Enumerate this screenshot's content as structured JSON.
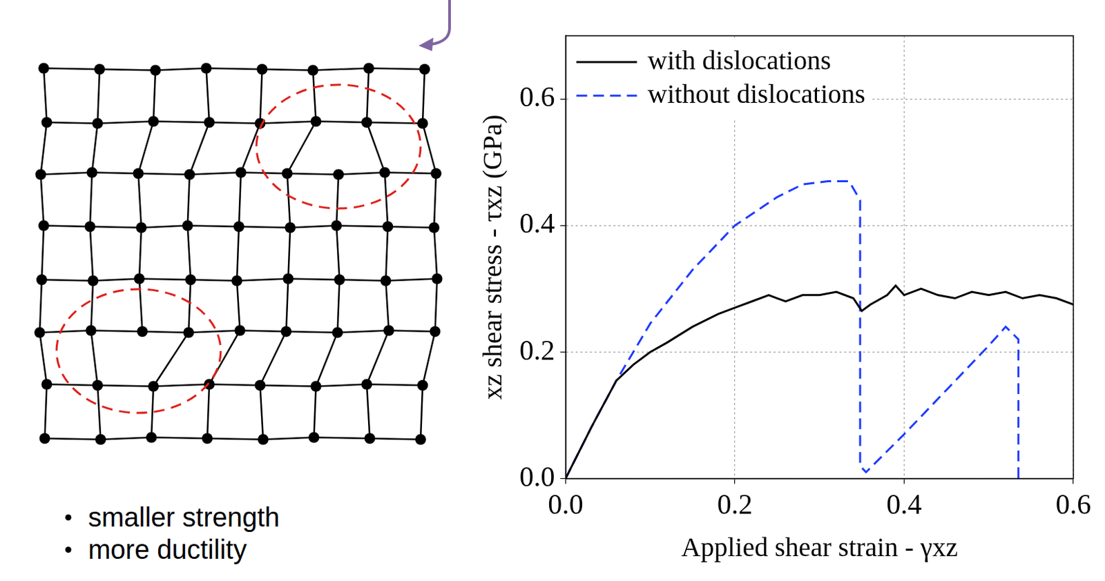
{
  "chart_data": {
    "type": "line",
    "x_label": "Applied shear strain - γxz",
    "y_label": "xz shear stress - τxz (GPa)",
    "xlim": [
      0,
      0.6
    ],
    "ylim": [
      0,
      0.7
    ],
    "xticks": [
      {
        "value": 0,
        "label": "0.0"
      },
      0.2,
      0.4,
      0.6
    ],
    "yticks": [
      {
        "value": 0,
        "label": "0.0"
      },
      0.2,
      0.4,
      0.6
    ],
    "grid": true,
    "legend": "upper left",
    "series": [
      {
        "name": "with dislocations",
        "color": "#000000",
        "line_style": "solid",
        "marker": "none",
        "x": [
          0,
          0.03,
          0.06,
          0.08,
          0.1,
          0.12,
          0.15,
          0.18,
          0.2,
          0.22,
          0.24,
          0.25,
          0.26,
          0.28,
          0.3,
          0.32,
          0.34,
          0.35,
          0.36,
          0.38,
          0.39,
          0.4,
          0.42,
          0.44,
          0.46,
          0.48,
          0.5,
          0.52,
          0.54,
          0.56,
          0.58,
          0.6
        ],
        "values": [
          0,
          0.08,
          0.155,
          0.18,
          0.2,
          0.215,
          0.24,
          0.26,
          0.27,
          0.28,
          0.29,
          0.285,
          0.28,
          0.29,
          0.29,
          0.295,
          0.285,
          0.265,
          0.275,
          0.29,
          0.305,
          0.29,
          0.3,
          0.29,
          0.285,
          0.295,
          0.29,
          0.295,
          0.285,
          0.29,
          0.285,
          0.275
        ]
      },
      {
        "name": "without dislocations",
        "color": "#1f3cff",
        "line_style": "dashed",
        "marker": "none",
        "x": [
          0,
          0.03,
          0.06,
          0.1,
          0.15,
          0.2,
          0.25,
          0.28,
          0.31,
          0.335,
          0.348,
          0.348,
          0.355,
          0.4,
          0.45,
          0.5,
          0.52,
          0.535,
          0.535
        ],
        "values": [
          0,
          0.08,
          0.155,
          0.245,
          0.33,
          0.4,
          0.445,
          0.465,
          0.47,
          0.47,
          0.44,
          0.02,
          0.01,
          0.07,
          0.14,
          0.21,
          0.24,
          0.22,
          0
        ]
      }
    ]
  },
  "bullets": [
    "smaller strength",
    "more ductility"
  ]
}
